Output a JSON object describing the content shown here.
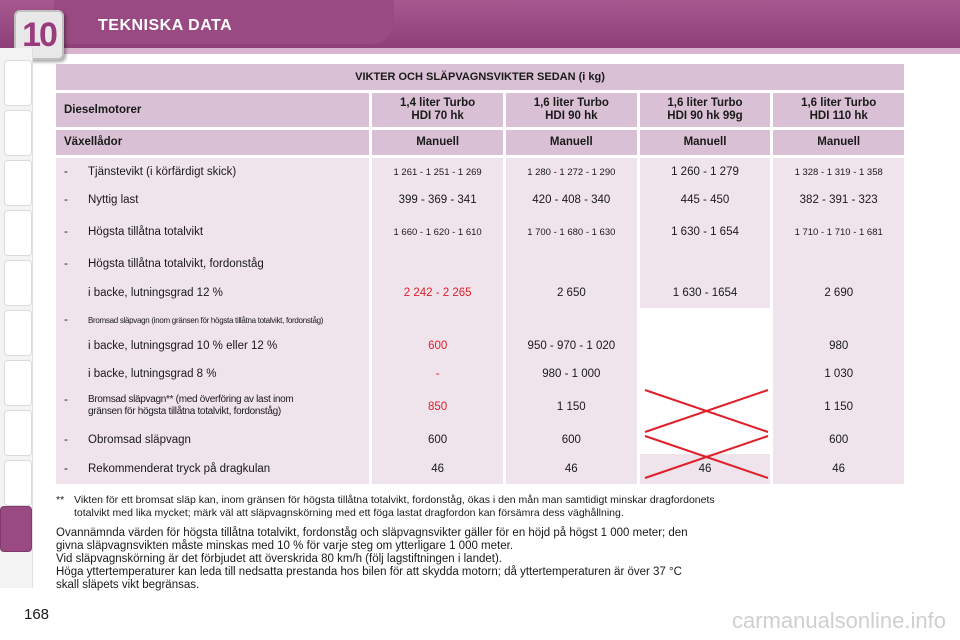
{
  "header": {
    "chapter_number": "10",
    "chapter_title": "TEKNISKA DATA"
  },
  "page_number": "168",
  "watermark": "carmanualsonline.info",
  "table": {
    "title": "VIKTER OCH SLÄPVAGNSVIKTER SEDAN (i kg)",
    "engine_label": "Dieselmotorer",
    "engines": [
      {
        "line1": "1,4 liter Turbo",
        "line2": "HDI 70 hk"
      },
      {
        "line1": "1,6 liter Turbo",
        "line2": "HDI 90 hk"
      },
      {
        "line1": "1,6 liter Turbo",
        "line2": "HDI 90 hk 99g"
      },
      {
        "line1": "1,6 liter Turbo",
        "line2": "HDI 110 hk"
      }
    ],
    "gearbox_label": "Växellådor",
    "gearboxes": [
      "Manuell",
      "Manuell",
      "Manuell",
      "Manuell"
    ],
    "rows": {
      "r1": {
        "dash": "-",
        "label": "Tjänstevikt (i körfärdigt skick)",
        "v": [
          "1 261 - 1 251 - 1 269",
          "1 280 - 1 272 - 1 290",
          "1 260 - 1 279",
          "1 328 - 1 319 - 1 358"
        ]
      },
      "r2": {
        "dash": "-",
        "label": "Nyttig last",
        "v": [
          "399 - 369 - 341",
          "420 - 408 - 340",
          "445 - 450",
          "382 - 391 - 323"
        ]
      },
      "r3": {
        "dash": "-",
        "label": "Högsta tillåtna totalvikt",
        "v": [
          "1 660 - 1 620 - 1 610",
          "1 700 - 1 680 - 1 630",
          "1 630 - 1 654",
          "1 710 - 1 710 - 1 681"
        ]
      },
      "r4": {
        "dash": "-",
        "label": "Högsta tillåtna totalvikt, fordonståg"
      },
      "r5": {
        "label": "i backe, lutningsgrad 12 %",
        "v": [
          "2 242 - 2 265",
          "2 650",
          "1 630 - 1654",
          "2 690"
        ]
      },
      "r6": {
        "dash": "-",
        "label": "Bromsad släpvagn (inom gränsen för högsta tillåtna totalvikt, fordonståg)"
      },
      "r7": {
        "label": "i backe, lutningsgrad 10 % eller 12 %",
        "v": [
          "600",
          "950 - 970 - 1 020",
          "",
          "980"
        ]
      },
      "r8": {
        "label": "i backe, lutningsgrad 8 %",
        "v": [
          "-",
          "980 - 1 000",
          "",
          "1 030"
        ]
      },
      "r9": {
        "dash": "-",
        "label_line1": "Bromsad släpvagn** (med överföring av last inom",
        "label_line2": "gränsen för högsta tillåtna totalvikt, fordonståg)",
        "v": [
          "850",
          "1 150",
          "",
          "1 150"
        ]
      },
      "r10": {
        "dash": "-",
        "label": "Obromsad släpvagn",
        "v": [
          "600",
          "600",
          "",
          "600"
        ]
      },
      "r11": {
        "dash": "-",
        "label": "Rekommenderat tryck på dragkulan",
        "v": [
          "46",
          "46",
          "46",
          "46"
        ]
      }
    }
  },
  "footnote": {
    "marker": "**",
    "line1": "Vikten för ett bromsat släp kan, inom gränsen för högsta tillåtna totalvikt, fordonståg, ökas i den mån man samtidigt minskar dragfordonets",
    "line2": "totalvikt med lika mycket; märk väl att släpvagnskörning med ett föga lastat dragfordon kan försämra dess väghållning."
  },
  "notes": [
    "Ovannämnda värden för högsta tillåtna totalvikt, fordonståg och släpvagnsvikter gäller för en höjd på högst 1 000 meter; den",
    "givna släpvagnsvikten måste minskas med 10 % för varje steg om ytterligare 1 000 meter.",
    "Vid släpvagnskörning är det förbjudet att överskrida 80 km/h (följ lagstiftningen i landet).",
    "Höga yttertemperaturer kan leda till nedsatta prestanda hos bilen för att skydda motorn; då yttertemperaturen är över 37 °C",
    "skall släpets vikt begränsas."
  ],
  "colors": {
    "header": "#9a4a82",
    "table_header": "#d9c0d4",
    "table_body": "#efe3ec",
    "highlight_red": "#e0202a"
  }
}
